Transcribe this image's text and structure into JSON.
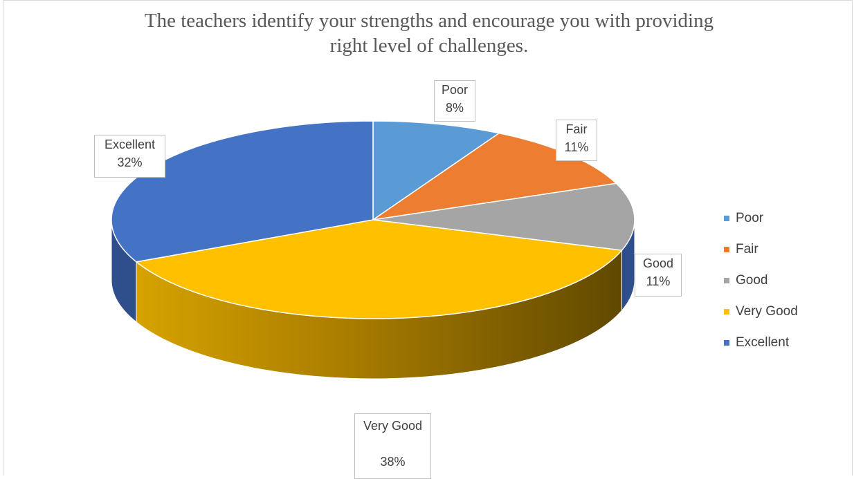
{
  "chart_data": {
    "type": "pie",
    "title": "The teachers identify your strengths and encourage you with providing right level of challenges.",
    "title_lines": [
      "The teachers identify your strengths and encourage you with providing",
      "right level of challenges."
    ],
    "categories": [
      "Poor",
      "Fair",
      "Good",
      "Very Good",
      "Excellent"
    ],
    "values": [
      8,
      11,
      11,
      38,
      32
    ],
    "value_labels": [
      "8%",
      "11%",
      "11%",
      "38%",
      "32%"
    ],
    "colors": [
      "#5b9bd5",
      "#ed7d31",
      "#a5a5a5",
      "#ffc000",
      "#4472c4"
    ],
    "legend_position": "right",
    "style": "3-D pie"
  }
}
